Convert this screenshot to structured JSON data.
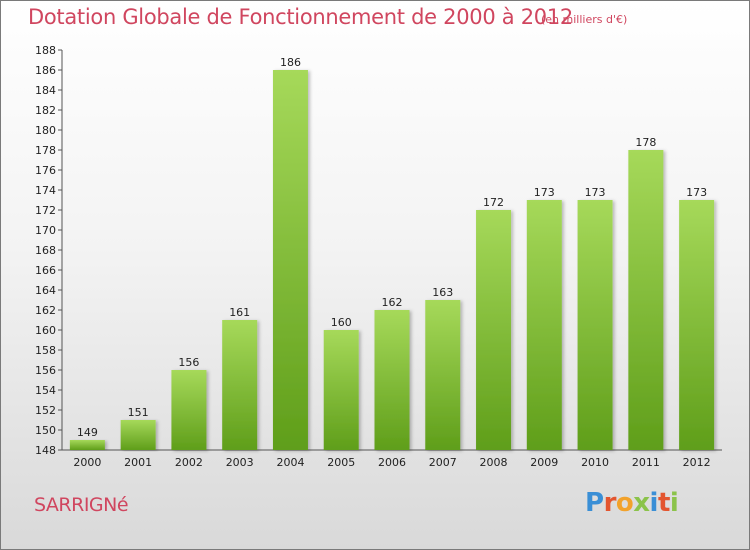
{
  "header": {
    "title": "Dotation Globale de Fonctionnement de 2000 à 2012",
    "unit": "(en milliers d'€)"
  },
  "footer": {
    "commune": "SARRIGNé",
    "logo_text": "Proxiti"
  },
  "colors": {
    "title": "#d0465f",
    "bar_light": "#a6d95a",
    "bar_dark": "#5f9e1a",
    "axis": "#555555",
    "grid": "#c8c8c8"
  },
  "chart_data": {
    "type": "bar",
    "categories": [
      "2000",
      "2001",
      "2002",
      "2003",
      "2004",
      "2005",
      "2006",
      "2007",
      "2008",
      "2009",
      "2010",
      "2011",
      "2012"
    ],
    "values": [
      149,
      151,
      156,
      161,
      186,
      160,
      162,
      163,
      172,
      173,
      173,
      178,
      173
    ],
    "title": "Dotation Globale de Fonctionnement de 2000 à 2012",
    "subtitle": "(en milliers d'€)",
    "xlabel": "",
    "ylabel": "",
    "ylim": [
      148,
      188
    ],
    "yticks": [
      148,
      150,
      152,
      154,
      156,
      158,
      160,
      162,
      164,
      166,
      168,
      170,
      172,
      174,
      176,
      178,
      180,
      182,
      184,
      186,
      188
    ],
    "grid": false,
    "legend": "none"
  }
}
